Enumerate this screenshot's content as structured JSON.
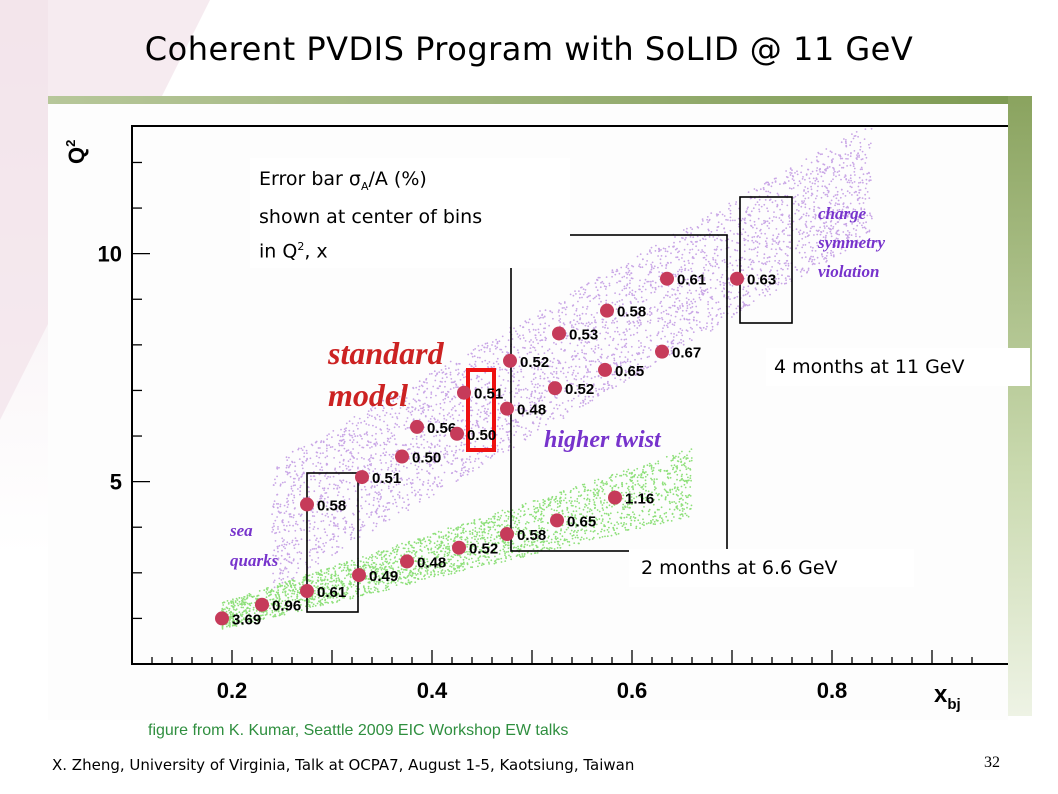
{
  "slide": {
    "title": "Coherent PVDIS Program with SoLID @ 11 GeV",
    "caption": "figure from K. Kumar, Seattle 2009 EIC Workshop EW talks",
    "footer": "X. Zheng, University of Virginia,  Talk at OCPA7, August 1-5, Kaotsiung, Taiwan",
    "page_number": "32",
    "notes": {
      "error_bar_line1_pre": "Error bar σ",
      "error_bar_sub": "A",
      "error_bar_line1_post": "/A (%)",
      "error_bar_line2": "shown at center of bins",
      "error_bar_line3_pre": "in Q",
      "error_bar_sup": "2",
      "error_bar_line3_post": ", x",
      "box_11gev": "4 months at 11 GeV",
      "box_66gev": "2 months at 6.6 GeV"
    }
  },
  "chart_data": {
    "type": "scatter",
    "title": "",
    "xlabel": "x",
    "xlabel_sub": "bj",
    "ylabel": "Q",
    "ylabel_sup": "2",
    "xlim": [
      0.1,
      0.98
    ],
    "ylim": [
      1.0,
      12.8
    ],
    "x_ticks": [
      "0.2",
      "0.4",
      "0.6",
      "0.8"
    ],
    "x_tick_values": [
      0.2,
      0.4,
      0.6,
      0.8
    ],
    "y_ticks": [
      "5",
      "10"
    ],
    "y_tick_values": [
      5,
      10
    ],
    "region_labels": {
      "standard_model_line1": "standard",
      "standard_model_line2": "model",
      "higher_twist": "higher twist",
      "csv_line1": "charge",
      "csv_line2": "symmetry",
      "csv_line3": "violation",
      "sea_line1": "sea",
      "sea_line2": "quarks"
    },
    "colors": {
      "points": "#c63b5a",
      "upper_band": "#c9a6e6",
      "lower_band": "#8ee07a",
      "region_text_red": "#cc2222",
      "region_text_purple": "#7733cc",
      "highlight_box": "#ee1111"
    },
    "series": [
      {
        "points": [
          {
            "x": 0.19,
            "y": 2.0,
            "label": "3.69"
          },
          {
            "x": 0.23,
            "y": 2.3,
            "label": "0.96"
          },
          {
            "x": 0.275,
            "y": 2.6,
            "label": "0.61"
          },
          {
            "x": 0.327,
            "y": 2.95,
            "label": "0.49"
          },
          {
            "x": 0.375,
            "y": 3.25,
            "label": "0.48"
          },
          {
            "x": 0.427,
            "y": 3.55,
            "label": "0.52"
          },
          {
            "x": 0.475,
            "y": 3.85,
            "label": "0.58"
          },
          {
            "x": 0.525,
            "y": 4.15,
            "label": "0.65"
          },
          {
            "x": 0.583,
            "y": 4.65,
            "label": "1.16"
          },
          {
            "x": 0.275,
            "y": 4.5,
            "label": "0.58"
          },
          {
            "x": 0.33,
            "y": 5.1,
            "label": "0.51"
          },
          {
            "x": 0.37,
            "y": 5.55,
            "label": "0.50"
          },
          {
            "x": 0.385,
            "y": 6.2,
            "label": "0.56"
          },
          {
            "x": 0.425,
            "y": 6.05,
            "label": "0.50"
          },
          {
            "x": 0.432,
            "y": 6.95,
            "label": "0.51"
          },
          {
            "x": 0.475,
            "y": 6.6,
            "label": "0.48"
          },
          {
            "x": 0.478,
            "y": 7.65,
            "label": "0.52"
          },
          {
            "x": 0.523,
            "y": 7.05,
            "label": "0.52"
          },
          {
            "x": 0.527,
            "y": 8.25,
            "label": "0.53"
          },
          {
            "x": 0.573,
            "y": 7.45,
            "label": "0.65"
          },
          {
            "x": 0.575,
            "y": 8.75,
            "label": "0.58"
          },
          {
            "x": 0.63,
            "y": 7.85,
            "label": "0.67"
          },
          {
            "x": 0.635,
            "y": 9.45,
            "label": "0.61"
          },
          {
            "x": 0.705,
            "y": 9.45,
            "label": "0.63"
          }
        ]
      }
    ]
  }
}
